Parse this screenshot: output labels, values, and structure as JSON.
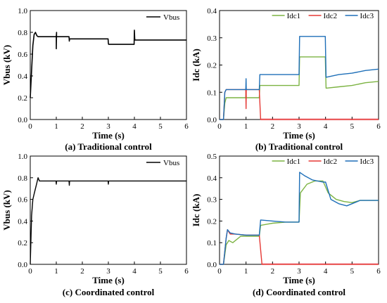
{
  "chart_data": [
    {
      "type": "line",
      "caption": "(a) Traditional control",
      "xlabel": "Time (s)",
      "ylabel": "Vbus (kV)",
      "xlim": [
        0,
        6
      ],
      "ylim": [
        0,
        1.0
      ],
      "xticks": [
        "0",
        "1",
        "2",
        "3",
        "4",
        "5",
        "6"
      ],
      "yticks": [
        "0.0",
        "0.2",
        "0.4",
        "0.6",
        "0.8",
        "1.0"
      ],
      "legend_position": "top-right",
      "series": [
        {
          "name": "Vbus",
          "color": "#000000",
          "x": [
            0,
            0.05,
            0.1,
            0.15,
            0.2,
            0.25,
            0.3,
            0.999,
            1.0,
            1.01,
            1.0,
            1.01,
            1.02,
            1.49,
            1.5,
            1.51,
            1.52,
            2.99,
            3.0,
            3.01,
            3.02,
            3.99,
            4.0,
            4.01,
            4.02,
            4.03,
            6.0
          ],
          "y": [
            0.2,
            0.45,
            0.68,
            0.78,
            0.8,
            0.77,
            0.76,
            0.76,
            0.65,
            0.8,
            0.76,
            0.76,
            0.76,
            0.76,
            0.72,
            0.74,
            0.74,
            0.74,
            0.7,
            0.69,
            0.69,
            0.69,
            0.82,
            0.75,
            0.73,
            0.73,
            0.73
          ]
        }
      ]
    },
    {
      "type": "line",
      "caption": "(b) Traditional control",
      "xlabel": "Time (s)",
      "ylabel": "Idc (kA)",
      "xlim": [
        0,
        6
      ],
      "ylim": [
        0,
        0.4
      ],
      "xticks": [
        "0",
        "1",
        "2",
        "3",
        "4",
        "5",
        "6"
      ],
      "yticks": [
        "0.0",
        "0.1",
        "0.2",
        "0.3",
        "0.4"
      ],
      "legend_position": "top",
      "series": [
        {
          "name": "Idc1",
          "color": "#7cb342",
          "x": [
            0,
            0.15,
            0.2,
            0.25,
            0.99,
            1.0,
            1.01,
            1.5,
            1.52,
            3.0,
            3.02,
            3.99,
            4.02,
            4.5,
            5.0,
            5.5,
            6.0
          ],
          "y": [
            0,
            0,
            0.06,
            0.08,
            0.08,
            0.1,
            0.08,
            0.08,
            0.125,
            0.125,
            0.23,
            0.23,
            0.115,
            0.12,
            0.125,
            0.135,
            0.14
          ]
        },
        {
          "name": "Idc2",
          "color": "#e53935",
          "x": [
            0,
            0.15,
            0.2,
            0.25,
            0.99,
            1.0,
            1.01,
            1.5,
            1.55,
            6.0
          ],
          "y": [
            0,
            0,
            0.1,
            0.11,
            0.11,
            0.04,
            0.11,
            0.11,
            0.0,
            0.0
          ],
          "shaded_region": [
            1.55,
            6.0
          ]
        },
        {
          "name": "Idc3",
          "color": "#1e6fb8",
          "x": [
            0,
            0.15,
            0.2,
            0.25,
            0.99,
            1.0,
            1.01,
            1.5,
            1.52,
            3.0,
            3.02,
            3.99,
            4.02,
            4.5,
            5.0,
            5.5,
            6.0
          ],
          "y": [
            0,
            0,
            0.1,
            0.11,
            0.11,
            0.15,
            0.11,
            0.11,
            0.165,
            0.165,
            0.305,
            0.305,
            0.155,
            0.165,
            0.17,
            0.18,
            0.185
          ]
        }
      ]
    },
    {
      "type": "line",
      "caption": "(c) Coordinated control",
      "xlabel": "Time (s)",
      "ylabel": "Vbus (kV)",
      "xlim": [
        0,
        6
      ],
      "ylim": [
        0,
        1.0
      ],
      "xticks": [
        "0",
        "1",
        "2",
        "3",
        "4",
        "5",
        "6"
      ],
      "yticks": [
        "0.0",
        "0.2",
        "0.4",
        "0.6",
        "0.8",
        "1.0"
      ],
      "legend_position": "top-right",
      "series": [
        {
          "name": "Vbus",
          "color": "#000000",
          "x": [
            0,
            0.05,
            0.1,
            0.15,
            0.2,
            0.25,
            0.3,
            0.35,
            0.99,
            1.0,
            1.01,
            1.49,
            1.5,
            1.51,
            2.99,
            3.0,
            3.01,
            6.0
          ],
          "y": [
            0.0,
            0.45,
            0.6,
            0.65,
            0.7,
            0.75,
            0.8,
            0.77,
            0.77,
            0.74,
            0.77,
            0.77,
            0.73,
            0.77,
            0.77,
            0.74,
            0.77,
            0.77
          ]
        }
      ]
    },
    {
      "type": "line",
      "caption": "(d) Coordinated control",
      "xlabel": "Time (s)",
      "ylabel": "Idc (kA)",
      "xlim": [
        0,
        6
      ],
      "ylim": [
        0,
        0.5
      ],
      "xticks": [
        "0",
        "1",
        "2",
        "3",
        "4",
        "5",
        "6"
      ],
      "yticks": [
        "0.0",
        "0.1",
        "0.2",
        "0.3",
        "0.4",
        "0.5"
      ],
      "legend_position": "top",
      "series": [
        {
          "name": "Idc1",
          "color": "#7cb342",
          "x": [
            0,
            0.15,
            0.25,
            0.35,
            0.5,
            0.8,
            1.0,
            1.5,
            1.55,
            2.0,
            2.5,
            3.0,
            3.05,
            3.3,
            3.6,
            3.9,
            4.1,
            4.4,
            4.7,
            5.0,
            5.3,
            6.0
          ],
          "y": [
            0,
            0,
            0.09,
            0.11,
            0.1,
            0.13,
            0.13,
            0.13,
            0.18,
            0.19,
            0.195,
            0.195,
            0.33,
            0.37,
            0.385,
            0.385,
            0.33,
            0.3,
            0.29,
            0.285,
            0.295,
            0.295
          ]
        },
        {
          "name": "Idc2",
          "color": "#e53935",
          "x": [
            0,
            0.15,
            0.25,
            0.3,
            0.4,
            0.6,
            1.0,
            1.5,
            1.6,
            6.0
          ],
          "y": [
            0,
            0,
            0.12,
            0.16,
            0.14,
            0.14,
            0.135,
            0.135,
            0.0,
            0.0
          ],
          "shaded_region": [
            1.6,
            6.0
          ]
        },
        {
          "name": "Idc3",
          "color": "#1e6fb8",
          "x": [
            0,
            0.15,
            0.25,
            0.3,
            0.4,
            0.6,
            1.0,
            1.5,
            1.55,
            2.0,
            2.5,
            3.0,
            3.02,
            3.2,
            3.5,
            3.9,
            4.0,
            4.2,
            4.5,
            4.8,
            5.0,
            5.3,
            6.0
          ],
          "y": [
            0,
            0,
            0.12,
            0.16,
            0.145,
            0.14,
            0.135,
            0.135,
            0.205,
            0.2,
            0.195,
            0.195,
            0.425,
            0.41,
            0.39,
            0.38,
            0.38,
            0.3,
            0.28,
            0.27,
            0.28,
            0.295,
            0.295
          ]
        }
      ]
    }
  ]
}
